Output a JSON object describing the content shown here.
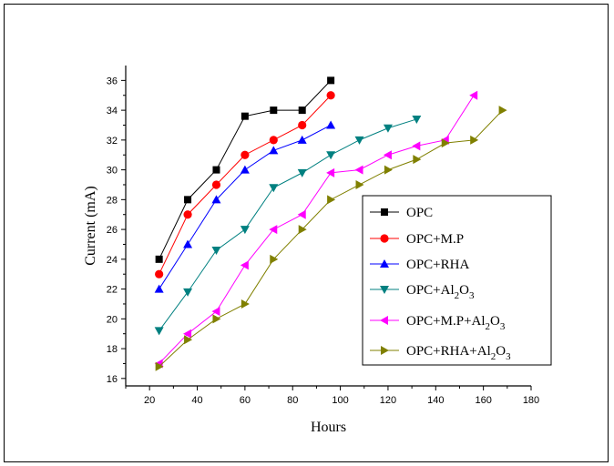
{
  "chart_data": {
    "type": "line",
    "title": "",
    "xlabel": "Hours",
    "ylabel": "Current (mA)",
    "xlim": [
      10,
      180
    ],
    "ylim": [
      15.5,
      37
    ],
    "xticks": [
      20,
      40,
      60,
      80,
      100,
      120,
      140,
      160,
      180
    ],
    "yticks": [
      16,
      18,
      20,
      22,
      24,
      26,
      28,
      30,
      32,
      34,
      36
    ],
    "grid": false,
    "legend_position": "right",
    "series": [
      {
        "name": "OPC",
        "label": {
          "main": "OPC",
          "sub": "",
          "tail": "",
          "sub2": ""
        },
        "color": "#000000",
        "marker": "square",
        "x": [
          24,
          36,
          48,
          60,
          72,
          84,
          96
        ],
        "y": [
          24,
          28,
          30,
          33.6,
          34,
          34,
          36
        ]
      },
      {
        "name": "OPC+M.P",
        "label": {
          "main": "OPC+M.P",
          "sub": "",
          "tail": "",
          "sub2": ""
        },
        "color": "#ff0000",
        "marker": "circle",
        "x": [
          24,
          36,
          48,
          60,
          72,
          84,
          96
        ],
        "y": [
          23,
          27,
          29,
          31,
          32,
          33,
          35
        ]
      },
      {
        "name": "OPC+RHA",
        "label": {
          "main": "OPC+RHA",
          "sub": "",
          "tail": "",
          "sub2": ""
        },
        "color": "#0000ff",
        "marker": "triangle-up",
        "x": [
          24,
          36,
          48,
          60,
          72,
          84,
          96
        ],
        "y": [
          22,
          25,
          28,
          30,
          31.3,
          32,
          33
        ]
      },
      {
        "name": "OPC+Al2O3",
        "label": {
          "main": "OPC+Al",
          "sub": "2",
          "tail": "O",
          "sub2": "3"
        },
        "color": "#008080",
        "marker": "triangle-down",
        "x": [
          24,
          36,
          48,
          60,
          72,
          84,
          96,
          108,
          120,
          132
        ],
        "y": [
          19.2,
          21.8,
          24.6,
          26,
          28.8,
          29.8,
          31,
          32,
          32.8,
          33.4
        ]
      },
      {
        "name": "OPC+M.P+Al2O3",
        "label": {
          "main": "OPC+M.P+Al",
          "sub": "2",
          "tail": "O",
          "sub2": "3"
        },
        "color": "#ff00ff",
        "marker": "triangle-left",
        "x": [
          24,
          36,
          48,
          60,
          72,
          84,
          96,
          108,
          120,
          132,
          144,
          156
        ],
        "y": [
          17,
          19,
          20.5,
          23.6,
          26,
          27,
          29.8,
          30,
          31,
          31.6,
          32,
          35
        ]
      },
      {
        "name": "OPC+RHA+Al2O3",
        "label": {
          "main": "OPC+RHA+Al",
          "sub": "2",
          "tail": "O",
          "sub2": "3"
        },
        "color": "#808000",
        "marker": "triangle-right",
        "x": [
          24,
          36,
          48,
          60,
          72,
          84,
          96,
          108,
          120,
          132,
          144,
          156,
          168
        ],
        "y": [
          16.8,
          18.6,
          20,
          21,
          24,
          26,
          28,
          29,
          30,
          30.7,
          31.8,
          32,
          34
        ]
      }
    ]
  }
}
